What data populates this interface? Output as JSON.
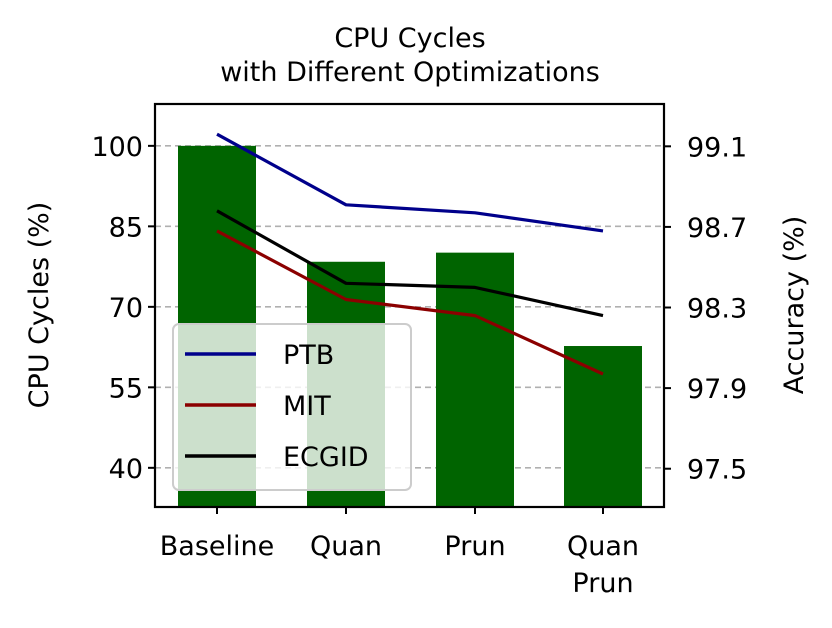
{
  "chart_data": {
    "type": "bar+line",
    "title": "CPU Cycles\nwith Different Optimizations",
    "title_lines": [
      "CPU Cycles",
      "with Different Optimizations"
    ],
    "xlabel": "",
    "ylabel": "CPU Cycles (%)",
    "ylabel_right": "Accuracy (%)",
    "categories": [
      "Baseline",
      "Quan",
      "Prun",
      "Quan\nPrun"
    ],
    "category_lines": [
      [
        "Baseline"
      ],
      [
        "Quan"
      ],
      [
        "Prun"
      ],
      [
        "Quan",
        "Prun"
      ]
    ],
    "bars": {
      "name": "CPU Cycles",
      "axis": "left",
      "color": "#006400",
      "values": [
        100,
        78.4,
        80.1,
        62.7
      ]
    },
    "series": [
      {
        "name": "PTB",
        "axis": "right",
        "color": "#00008b",
        "values": [
          99.16,
          98.81,
          98.77,
          98.68
        ]
      },
      {
        "name": "MIT",
        "axis": "right",
        "color": "#8b0000",
        "values": [
          98.68,
          98.34,
          98.26,
          97.97
        ]
      },
      {
        "name": "ECGID",
        "axis": "right",
        "color": "#000000",
        "values": [
          98.78,
          98.42,
          98.4,
          98.26
        ]
      }
    ],
    "ylim": [
      32.7,
      107.8
    ],
    "ylim_right": [
      97.31,
      99.31
    ],
    "yticks": [
      40,
      55,
      70,
      85,
      100
    ],
    "yticks_right": [
      97.5,
      97.9,
      98.3,
      98.7,
      99.1
    ],
    "ytick_labels_right": [
      "97.5",
      "97.9",
      "98.3",
      "98.7",
      "99.1"
    ],
    "grid": {
      "axis": "y",
      "style": "dashed",
      "color": "#b0b0b0"
    },
    "legend": {
      "position": "lower left",
      "entries": [
        "PTB",
        "MIT",
        "ECGID"
      ]
    }
  }
}
